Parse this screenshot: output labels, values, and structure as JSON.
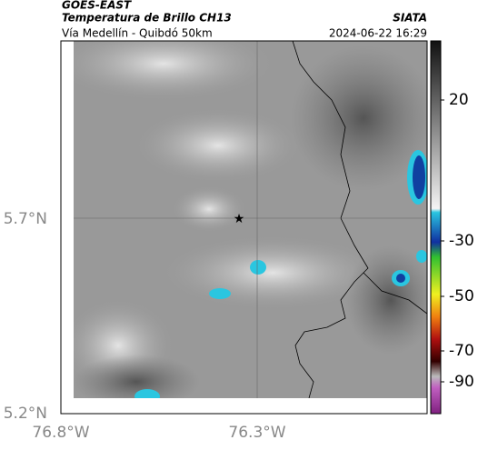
{
  "header": {
    "satellite": "GOES-EAST",
    "product": "Temperatura de Brillo CH13",
    "source": "SIATA",
    "route": "Vía Medellín - Quibdó 50km",
    "timestamp": "2024-06-22 16:29"
  },
  "axes": {
    "lat_labels": [
      "5.7°N",
      "5.2°N"
    ],
    "lon_labels": [
      "76.8°W",
      "76.3°W"
    ]
  },
  "colorbar": {
    "tick_labels": [
      "20",
      "-30",
      "-50",
      "-70",
      "-90"
    ]
  }
}
